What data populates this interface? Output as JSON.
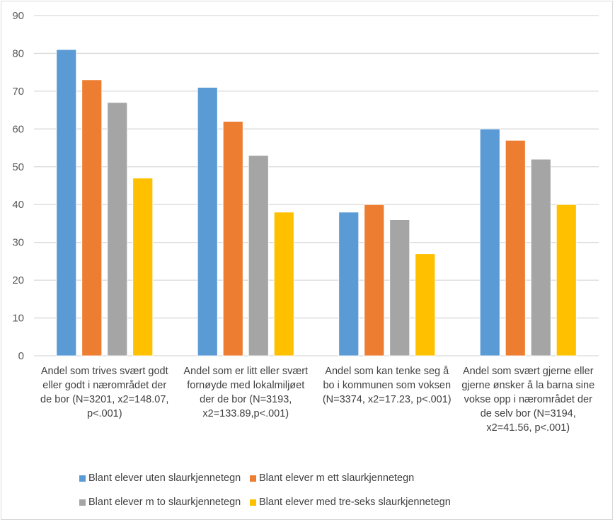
{
  "chart_data": {
    "type": "bar",
    "title": "",
    "xlabel": "",
    "ylabel": "",
    "ylim": [
      0,
      90
    ],
    "yticks": [
      0,
      10,
      20,
      30,
      40,
      50,
      60,
      70,
      80,
      90
    ],
    "grid": true,
    "legend_position": "bottom",
    "categories": [
      "Andel som trives svært godt eller godt i nærområdet der de bor (N=3201, x2=148.07, p<.001)",
      "Andel som er litt eller svært fornøyde med lokalmiljøet der de bor (N=3193, x2=133.89,p<.001)",
      "Andel som kan tenke seg å bo i kommunen som voksen (N=3374, x2=17.23, p<.001)",
      "Andel som svært gjerne eller gjerne ønsker å la barna sine vokse opp i nærområdet der de selv bor (N=3194, x2=41.56, p<.001)"
    ],
    "series": [
      {
        "name": "Blant elever uten slaurkjennetegn",
        "color": "#5b9bd5",
        "values": [
          81,
          71,
          38,
          60
        ]
      },
      {
        "name": "Blant elever m ett slaurkjennetegn",
        "color": "#ed7d31",
        "values": [
          73,
          62,
          40,
          57
        ]
      },
      {
        "name": "Blant elever m to slaurkjennetegn",
        "color": "#a5a5a5",
        "values": [
          67,
          53,
          36,
          52
        ]
      },
      {
        "name": "Blant elever med tre-seks slaurkjennetegn",
        "color": "#ffc000",
        "values": [
          47,
          38,
          27,
          40
        ]
      }
    ]
  }
}
